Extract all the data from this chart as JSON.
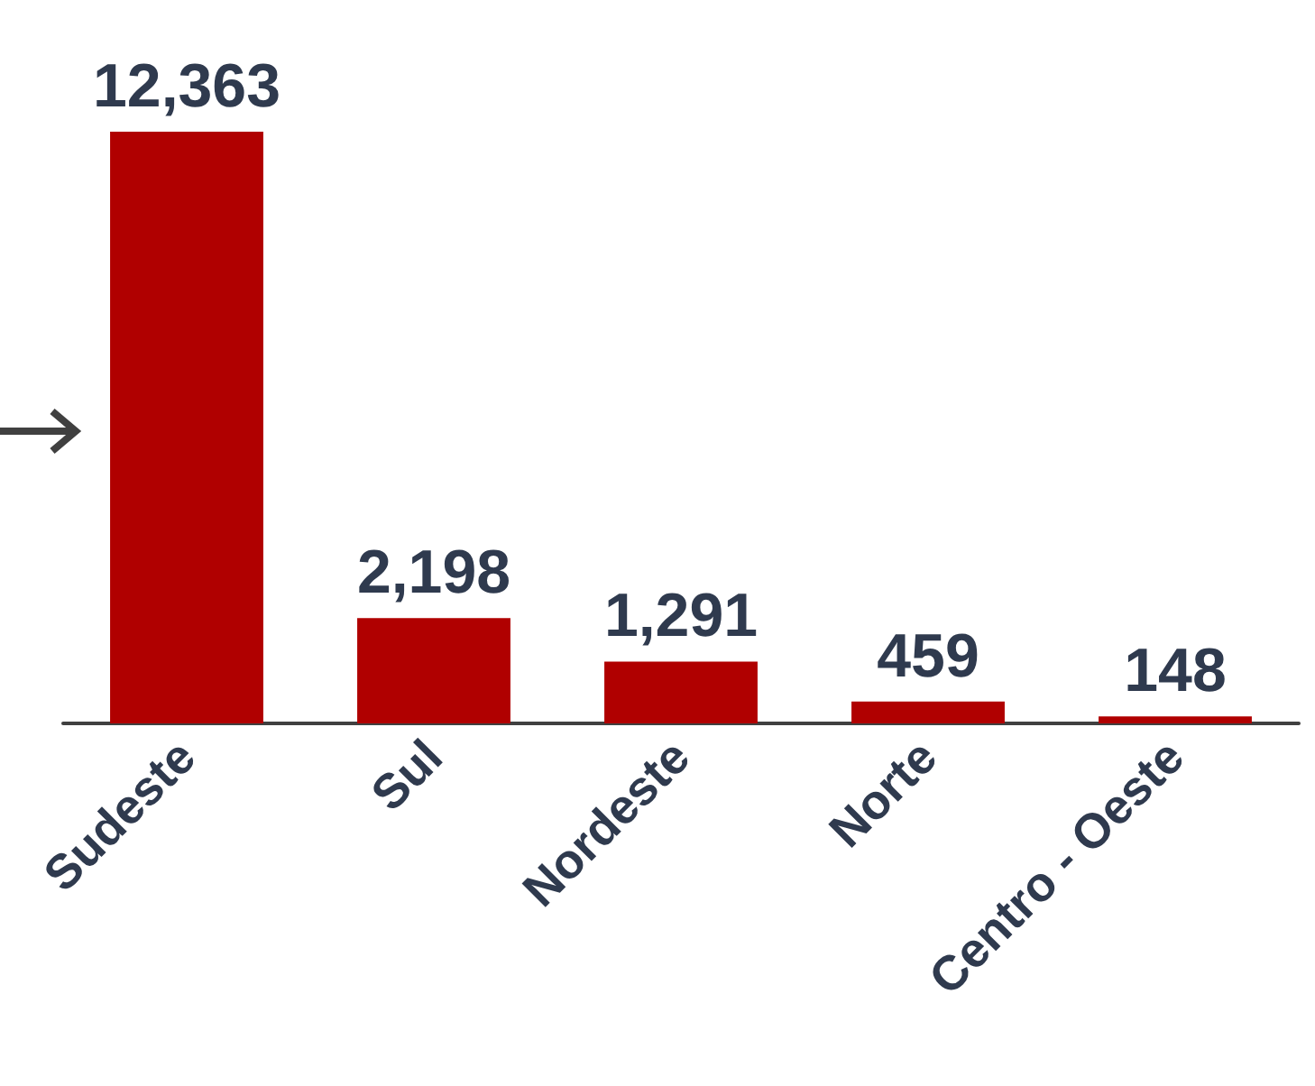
{
  "chart_data": {
    "type": "bar",
    "categories": [
      "Sudeste",
      "Sul",
      "Nordeste",
      "Norte",
      "Centro - Oeste"
    ],
    "values": [
      12363,
      2198,
      1291,
      459,
      148
    ],
    "color": "#b00000",
    "value_labels": [
      "12,363",
      "2,198",
      "1,291",
      "459",
      "148"
    ]
  }
}
